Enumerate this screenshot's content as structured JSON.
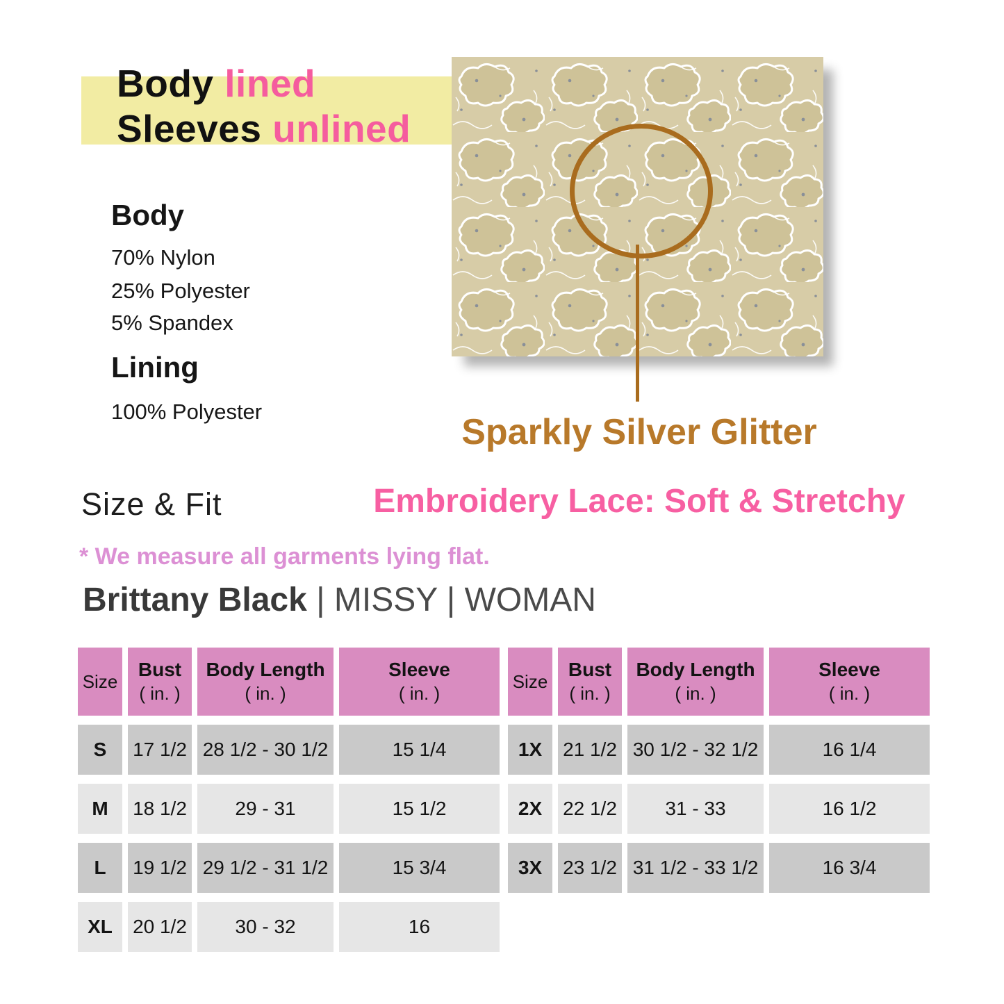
{
  "lining_banner": {
    "line1_black": "Body",
    "line1_pink": "lined",
    "line2_black": "Sleeves",
    "line2_pink": "unlined",
    "highlight_color": "#F2ECA3",
    "pink_color": "#F55C9E"
  },
  "composition": {
    "body_heading": "Body",
    "body_items": [
      "70% Nylon",
      "25% Polyester",
      "5% Spandex"
    ],
    "lining_heading": "Lining",
    "lining_items": [
      "100% Polyester"
    ]
  },
  "fabric": {
    "caption_line1": "Sparkly Silver Glitter",
    "caption_line2": "Embroidery Lace: Soft & Stretchy",
    "caption1_color": "#B8792A",
    "caption2_color": "#F75FA2",
    "annotation_color": "#A96C1E",
    "swatch_base_color": "#D7CCA7"
  },
  "size_fit": {
    "title": "Size & Fit",
    "note": "* We measure all garments lying flat.",
    "product_bold": "Brittany Black",
    "product_rest": " | MISSY | WOMAN"
  },
  "tables": {
    "header": {
      "size": "Size",
      "columns": [
        {
          "label": "Bust",
          "unit": "( in. )"
        },
        {
          "label": "Body Length",
          "unit": "( in. )"
        },
        {
          "label": "Sleeve",
          "unit": "( in. )"
        }
      ],
      "bg": "#D98CC0",
      "row_dark": "#C9C9C9",
      "row_light": "#E6E6E6"
    },
    "missy": {
      "rows": [
        {
          "size": "S",
          "bust": "17 1/2",
          "body_length": "28 1/2 - 30 1/2",
          "sleeve": "15 1/4"
        },
        {
          "size": "M",
          "bust": "18 1/2",
          "body_length": "29 - 31",
          "sleeve": "15 1/2"
        },
        {
          "size": "L",
          "bust": "19 1/2",
          "body_length": "29 1/2 - 31 1/2",
          "sleeve": "15 3/4"
        },
        {
          "size": "XL",
          "bust": "20 1/2",
          "body_length": "30 - 32",
          "sleeve": "16"
        }
      ]
    },
    "woman": {
      "rows": [
        {
          "size": "1X",
          "bust": "21 1/2",
          "body_length": "30 1/2 - 32 1/2",
          "sleeve": "16 1/4"
        },
        {
          "size": "2X",
          "bust": "22 1/2",
          "body_length": "31 - 33",
          "sleeve": "16 1/2"
        },
        {
          "size": "3X",
          "bust": "23 1/2",
          "body_length": "31 1/2 - 33 1/2",
          "sleeve": "16 3/4"
        }
      ]
    }
  }
}
